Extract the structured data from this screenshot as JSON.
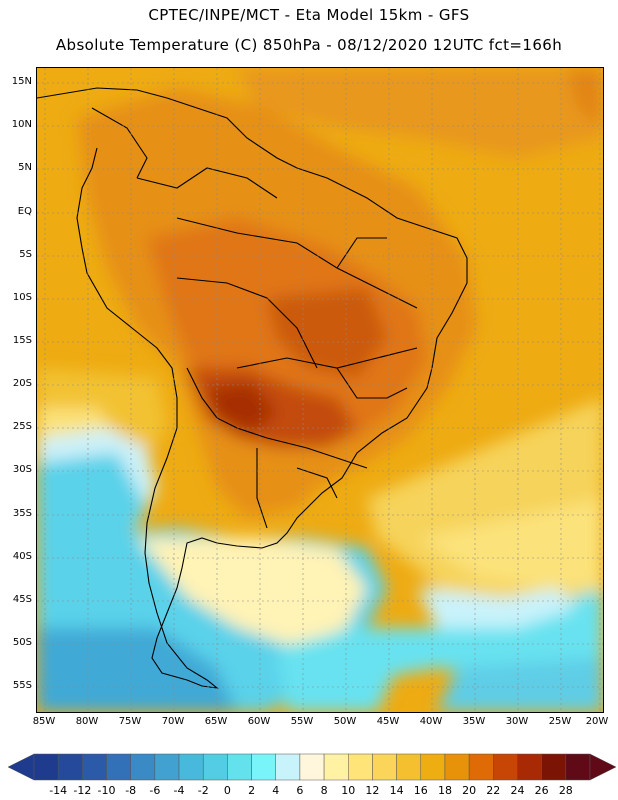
{
  "header": {
    "line1": "CPTEC/INPE/MCT -  Eta Model 15km - GFS",
    "line2": "Absolute Temperature (C) 850hPa - 08/12/2020 12UTC fct=166h"
  },
  "map": {
    "region": "South America",
    "lat_labels": [
      "15N",
      "10N",
      "5N",
      "EQ",
      "5S",
      "10S",
      "15S",
      "20S",
      "25S",
      "30S",
      "35S",
      "40S",
      "45S",
      "50S",
      "55S"
    ],
    "lon_labels": [
      "85W",
      "80W",
      "75W",
      "70W",
      "65W",
      "60W",
      "55W",
      "50W",
      "45W",
      "40W",
      "35W",
      "30W",
      "25W",
      "20W"
    ]
  },
  "legend": {
    "labels": [
      "-14",
      "-12",
      "-10",
      "-8",
      "-6",
      "-4",
      "-2",
      "0",
      "2",
      "4",
      "6",
      "8",
      "10",
      "12",
      "14",
      "16",
      "18",
      "20",
      "22",
      "24",
      "26",
      "28"
    ],
    "colors": [
      "#1f3b8e",
      "#25499b",
      "#2b5aa9",
      "#3271b8",
      "#3a8ac6",
      "#41a2d1",
      "#48b9dc",
      "#52cde4",
      "#63e2ee",
      "#79f5f9",
      "#c9f3fb",
      "#fff6dc",
      "#fff3a3",
      "#ffe47a",
      "#fbd45a",
      "#f5c030",
      "#eead10",
      "#e8920a",
      "#df6b06",
      "#c84605",
      "#a82a05",
      "#7c1406",
      "#600a18"
    ]
  },
  "colors": {
    "warm_core": "#b83a06",
    "land_warm": "#e89218",
    "ocean_north": "#eaa912",
    "cold_south": "#5ad2ea",
    "coastline": "#000000"
  }
}
